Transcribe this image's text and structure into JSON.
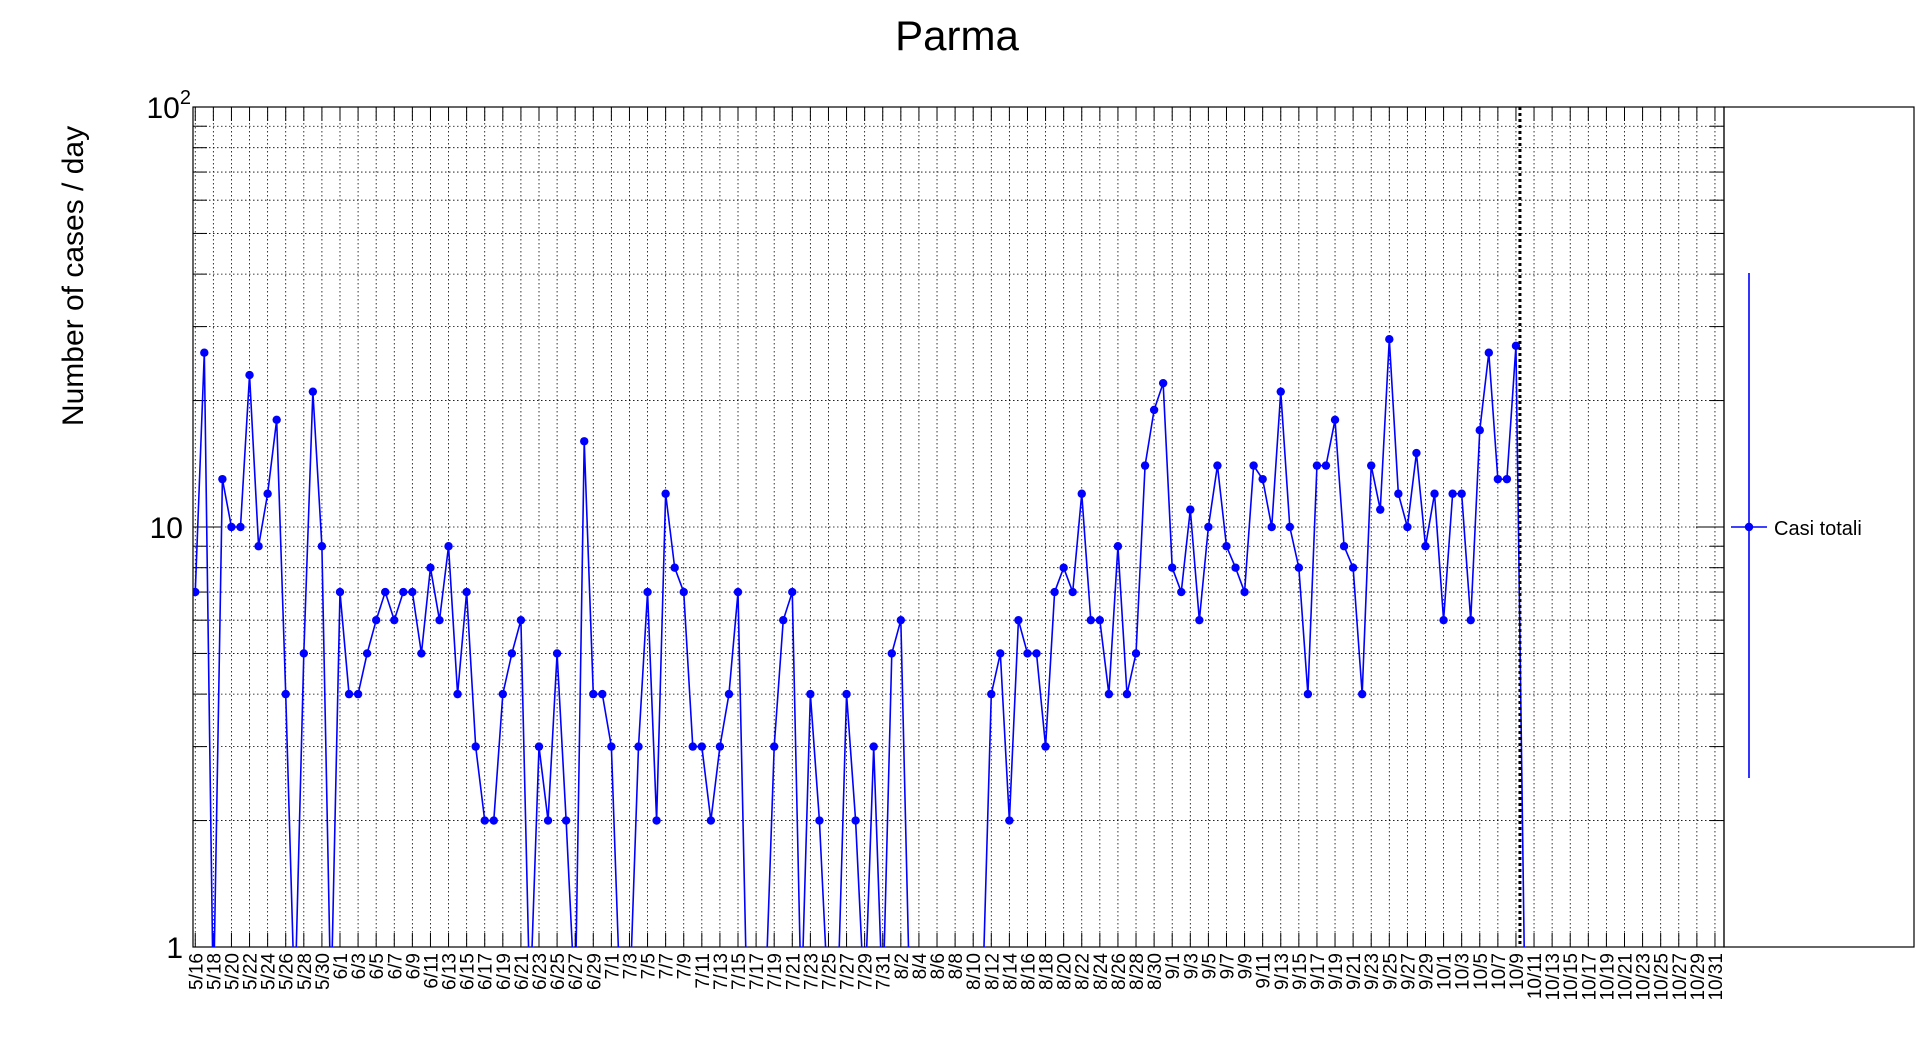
{
  "chart_data": {
    "type": "line",
    "title": "Parma",
    "ylabel": "Number of cases / day",
    "xlabel": "",
    "yscale": "log",
    "ylim": [
      1,
      100
    ],
    "ytick_labels": [
      {
        "value": 1,
        "base": "1",
        "exp": ""
      },
      {
        "value": 10,
        "base": "10",
        "exp": ""
      },
      {
        "value": 100,
        "base": "10",
        "exp": "2"
      }
    ],
    "x_start": "5/16",
    "x_end": "10/31",
    "xtick_labels": [
      "5/16",
      "5/18",
      "5/20",
      "5/22",
      "5/24",
      "5/26",
      "5/28",
      "5/30",
      "6/1",
      "6/3",
      "6/5",
      "6/7",
      "6/9",
      "6/11",
      "6/13",
      "6/15",
      "6/17",
      "6/19",
      "6/21",
      "6/23",
      "6/25",
      "6/27",
      "6/29",
      "7/1",
      "7/3",
      "7/5",
      "7/7",
      "7/9",
      "7/11",
      "7/13",
      "7/15",
      "7/17",
      "7/19",
      "7/21",
      "7/23",
      "7/25",
      "7/27",
      "7/29",
      "7/31",
      "8/2",
      "8/4",
      "8/6",
      "8/8",
      "8/10",
      "8/12",
      "8/14",
      "8/16",
      "8/18",
      "8/20",
      "8/22",
      "8/24",
      "8/26",
      "8/28",
      "8/30",
      "9/1",
      "9/3",
      "9/5",
      "9/7",
      "9/9",
      "9/11",
      "9/13",
      "9/15",
      "9/17",
      "9/19",
      "9/21",
      "9/23",
      "9/25",
      "9/27",
      "9/29",
      "10/1",
      "10/3",
      "10/5",
      "10/7",
      "10/9",
      "10/11",
      "10/13",
      "10/15",
      "10/17",
      "10/19",
      "10/21",
      "10/23",
      "10/25",
      "10/27",
      "10/29",
      "10/31"
    ],
    "marker_date": "10/9",
    "grid": true,
    "legend_position": "right",
    "series": [
      {
        "name": "Casi totali",
        "color": "#0000ff",
        "x": [
          "5/16",
          "5/17",
          "5/18",
          "5/19",
          "5/20",
          "5/21",
          "5/22",
          "5/23",
          "5/24",
          "5/25",
          "5/26",
          "5/27",
          "5/28",
          "5/29",
          "5/30",
          "5/31",
          "6/1",
          "6/2",
          "6/3",
          "6/4",
          "6/5",
          "6/6",
          "6/7",
          "6/8",
          "6/9",
          "6/10",
          "6/11",
          "6/12",
          "6/13",
          "6/14",
          "6/15",
          "6/16",
          "6/17",
          "6/18",
          "6/19",
          "6/20",
          "6/21",
          "6/22",
          "6/23",
          "6/24",
          "6/25",
          "6/26",
          "6/27",
          "6/28",
          "6/29",
          "6/30",
          "7/1",
          "7/2",
          "7/3",
          "7/4",
          "7/5",
          "7/6",
          "7/7",
          "7/8",
          "7/9",
          "7/10",
          "7/11",
          "7/12",
          "7/13",
          "7/14",
          "7/15",
          "7/16",
          "7/17",
          "7/18",
          "7/19",
          "7/20",
          "7/21",
          "7/22",
          "7/23",
          "7/24",
          "7/25",
          "7/26",
          "7/27",
          "7/28",
          "7/29",
          "7/30",
          "7/31",
          "8/1",
          "8/2",
          "8/3",
          "8/4",
          "8/5",
          "8/6",
          "8/7",
          "8/8",
          "8/9",
          "8/10",
          "8/11",
          "8/12",
          "8/13",
          "8/14",
          "8/15",
          "8/16",
          "8/17",
          "8/18",
          "8/19",
          "8/20",
          "8/21",
          "8/22",
          "8/23",
          "8/24",
          "8/25",
          "8/26",
          "8/27",
          "8/28",
          "8/29",
          "8/30",
          "8/31",
          "9/1",
          "9/2",
          "9/3",
          "9/4",
          "9/5",
          "9/6",
          "9/7",
          "9/8",
          "9/9",
          "9/10",
          "9/11",
          "9/12",
          "9/13",
          "9/14",
          "9/15",
          "9/16",
          "9/17",
          "9/18",
          "9/19",
          "9/20",
          "9/21",
          "9/22",
          "9/23",
          "9/24",
          "9/25",
          "9/26",
          "9/27",
          "9/28",
          "9/29",
          "9/30",
          "10/1",
          "10/2",
          "10/3",
          "10/4",
          "10/5",
          "10/6",
          "10/7",
          "10/8",
          "10/9",
          "10/10"
        ],
        "values": [
          7,
          26,
          0,
          13,
          10,
          10,
          23,
          9,
          12,
          18,
          4,
          0,
          5,
          21,
          9,
          0,
          7,
          4,
          4,
          5,
          6,
          7,
          6,
          7,
          7,
          5,
          8,
          6,
          9,
          4,
          7,
          3,
          2,
          2,
          4,
          5,
          6,
          0,
          3,
          2,
          5,
          2,
          0,
          16,
          4,
          4,
          3,
          0,
          0,
          3,
          7,
          2,
          12,
          8,
          7,
          3,
          3,
          2,
          3,
          4,
          7,
          0,
          0,
          0,
          3,
          6,
          7,
          0,
          4,
          2,
          0,
          0,
          4,
          2,
          0,
          3,
          0,
          5,
          6,
          0,
          0,
          0,
          0,
          0,
          0,
          0,
          0,
          0,
          4,
          5,
          2,
          6,
          5,
          5,
          3,
          7,
          8,
          7,
          12,
          6,
          6,
          4,
          9,
          4,
          5,
          14,
          19,
          22,
          8,
          7,
          11,
          6,
          10,
          14,
          9,
          8,
          7,
          14,
          13,
          10,
          21,
          10,
          8,
          4,
          14,
          14,
          18,
          9,
          8,
          4,
          14,
          11,
          28,
          12,
          10,
          15,
          9,
          12,
          6,
          12,
          12,
          6,
          17,
          26,
          13,
          13,
          27,
          0
        ]
      }
    ]
  }
}
